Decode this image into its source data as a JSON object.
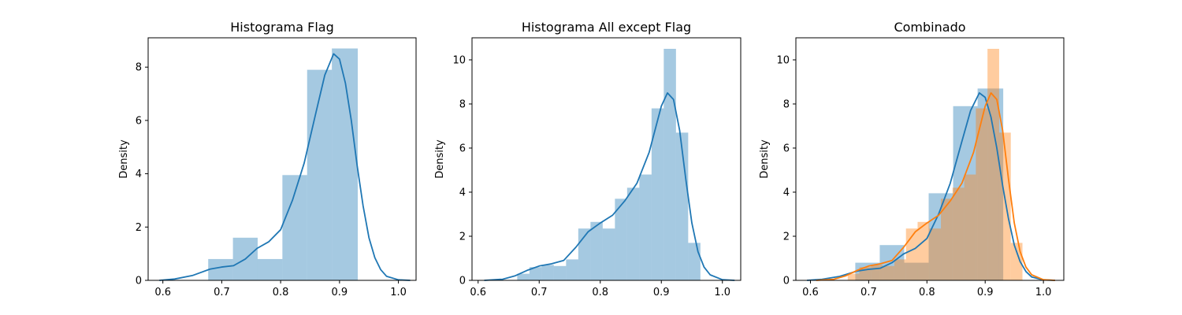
{
  "colors": {
    "blue_hist": "#1f77b4",
    "blue_line": "#1f77b4",
    "orange_hist": "#ff7f0e",
    "orange_line": "#ff7f0e"
  },
  "chart_data": [
    {
      "type": "bar",
      "title": "Histograma Flag",
      "xlabel": "",
      "ylabel": "Density",
      "xlim": [
        0.575,
        1.03
      ],
      "ylim": [
        0,
        9.1
      ],
      "xticks": [
        0.6,
        0.7,
        0.8,
        0.9,
        1.0
      ],
      "xtick_labels": [
        "0.6",
        "0.7",
        "0.8",
        "0.9",
        "1.0"
      ],
      "yticks": [
        0,
        2,
        4,
        6,
        8
      ],
      "ytick_labels": [
        "0",
        "2",
        "4",
        "6",
        "8"
      ],
      "grid": false,
      "series": [
        {
          "hist_color": "blue_hist",
          "line_color": "blue_line",
          "bins": [
            {
              "x0": 0.677,
              "x1": 0.719,
              "value": 0.8
            },
            {
              "x0": 0.719,
              "x1": 0.761,
              "value": 1.6
            },
            {
              "x0": 0.761,
              "x1": 0.803,
              "value": 0.8
            },
            {
              "x0": 0.803,
              "x1": 0.845,
              "value": 3.95
            },
            {
              "x0": 0.845,
              "x1": 0.887,
              "value": 7.9
            },
            {
              "x0": 0.887,
              "x1": 0.931,
              "value": 8.7
            }
          ],
          "kde": [
            [
              0.594,
              0.0
            ],
            [
              0.62,
              0.05
            ],
            [
              0.65,
              0.18
            ],
            [
              0.68,
              0.42
            ],
            [
              0.7,
              0.5
            ],
            [
              0.72,
              0.55
            ],
            [
              0.74,
              0.8
            ],
            [
              0.76,
              1.2
            ],
            [
              0.78,
              1.45
            ],
            [
              0.8,
              1.9
            ],
            [
              0.82,
              3.0
            ],
            [
              0.84,
              4.4
            ],
            [
              0.86,
              6.3
            ],
            [
              0.875,
              7.7
            ],
            [
              0.89,
              8.5
            ],
            [
              0.9,
              8.3
            ],
            [
              0.91,
              7.4
            ],
            [
              0.92,
              6.0
            ],
            [
              0.93,
              4.3
            ],
            [
              0.94,
              2.8
            ],
            [
              0.95,
              1.6
            ],
            [
              0.96,
              0.85
            ],
            [
              0.97,
              0.4
            ],
            [
              0.98,
              0.15
            ],
            [
              1.0,
              0.02
            ],
            [
              1.02,
              0.0
            ]
          ]
        }
      ]
    },
    {
      "type": "bar",
      "title": "Histograma All except Flag",
      "xlabel": "",
      "ylabel": "Density",
      "xlim": [
        0.59,
        1.03
      ],
      "ylim": [
        0,
        11.0
      ],
      "xticks": [
        0.6,
        0.7,
        0.8,
        0.9,
        1.0
      ],
      "xtick_labels": [
        "0.6",
        "0.7",
        "0.8",
        "0.9",
        "1.0"
      ],
      "yticks": [
        0,
        2,
        4,
        6,
        8,
        10
      ],
      "ytick_labels": [
        "0",
        "2",
        "4",
        "6",
        "8",
        "10"
      ],
      "grid": false,
      "series": [
        {
          "hist_color": "blue_hist",
          "line_color": "blue_line",
          "bins": [
            {
              "x0": 0.664,
              "x1": 0.684,
              "value": 0.3
            },
            {
              "x0": 0.684,
              "x1": 0.704,
              "value": 0.6
            },
            {
              "x0": 0.704,
              "x1": 0.724,
              "value": 0.7
            },
            {
              "x0": 0.724,
              "x1": 0.744,
              "value": 0.65
            },
            {
              "x0": 0.744,
              "x1": 0.764,
              "value": 0.95
            },
            {
              "x0": 0.764,
              "x1": 0.784,
              "value": 2.35
            },
            {
              "x0": 0.784,
              "x1": 0.804,
              "value": 2.65
            },
            {
              "x0": 0.804,
              "x1": 0.824,
              "value": 2.35
            },
            {
              "x0": 0.824,
              "x1": 0.844,
              "value": 3.7
            },
            {
              "x0": 0.844,
              "x1": 0.864,
              "value": 4.2
            },
            {
              "x0": 0.864,
              "x1": 0.884,
              "value": 4.8
            },
            {
              "x0": 0.884,
              "x1": 0.904,
              "value": 7.8
            },
            {
              "x0": 0.904,
              "x1": 0.924,
              "value": 10.5
            },
            {
              "x0": 0.924,
              "x1": 0.944,
              "value": 6.7
            },
            {
              "x0": 0.944,
              "x1": 0.964,
              "value": 1.7
            }
          ],
          "kde": [
            [
              0.61,
              0.0
            ],
            [
              0.64,
              0.05
            ],
            [
              0.66,
              0.2
            ],
            [
              0.68,
              0.45
            ],
            [
              0.7,
              0.65
            ],
            [
              0.72,
              0.75
            ],
            [
              0.74,
              0.9
            ],
            [
              0.76,
              1.5
            ],
            [
              0.78,
              2.2
            ],
            [
              0.8,
              2.6
            ],
            [
              0.82,
              2.95
            ],
            [
              0.84,
              3.6
            ],
            [
              0.86,
              4.4
            ],
            [
              0.88,
              5.8
            ],
            [
              0.9,
              7.9
            ],
            [
              0.91,
              8.5
            ],
            [
              0.92,
              8.2
            ],
            [
              0.93,
              6.8
            ],
            [
              0.94,
              4.6
            ],
            [
              0.95,
              2.6
            ],
            [
              0.96,
              1.3
            ],
            [
              0.97,
              0.6
            ],
            [
              0.98,
              0.25
            ],
            [
              1.0,
              0.03
            ],
            [
              1.02,
              0.0
            ]
          ]
        }
      ]
    },
    {
      "type": "bar",
      "title": "Combinado",
      "xlabel": "",
      "ylabel": "Density",
      "xlim": [
        0.575,
        1.035
      ],
      "ylim": [
        0,
        11.0
      ],
      "xticks": [
        0.6,
        0.7,
        0.8,
        0.9,
        1.0
      ],
      "xtick_labels": [
        "0.6",
        "0.7",
        "0.8",
        "0.9",
        "1.0"
      ],
      "yticks": [
        0,
        2,
        4,
        6,
        8,
        10
      ],
      "ytick_labels": [
        "0",
        "2",
        "4",
        "6",
        "8",
        "10"
      ],
      "grid": false,
      "series": [
        {
          "hist_color": "blue_hist",
          "line_color": "blue_line",
          "bins": [
            {
              "x0": 0.677,
              "x1": 0.719,
              "value": 0.8
            },
            {
              "x0": 0.719,
              "x1": 0.761,
              "value": 1.6
            },
            {
              "x0": 0.761,
              "x1": 0.803,
              "value": 0.8
            },
            {
              "x0": 0.803,
              "x1": 0.845,
              "value": 3.95
            },
            {
              "x0": 0.845,
              "x1": 0.887,
              "value": 7.9
            },
            {
              "x0": 0.887,
              "x1": 0.931,
              "value": 8.7
            }
          ],
          "kde": [
            [
              0.594,
              0.0
            ],
            [
              0.62,
              0.05
            ],
            [
              0.65,
              0.18
            ],
            [
              0.68,
              0.42
            ],
            [
              0.7,
              0.5
            ],
            [
              0.72,
              0.55
            ],
            [
              0.74,
              0.8
            ],
            [
              0.76,
              1.2
            ],
            [
              0.78,
              1.45
            ],
            [
              0.8,
              1.9
            ],
            [
              0.82,
              3.0
            ],
            [
              0.84,
              4.4
            ],
            [
              0.86,
              6.3
            ],
            [
              0.875,
              7.7
            ],
            [
              0.89,
              8.5
            ],
            [
              0.9,
              8.3
            ],
            [
              0.91,
              7.4
            ],
            [
              0.92,
              6.0
            ],
            [
              0.93,
              4.3
            ],
            [
              0.94,
              2.8
            ],
            [
              0.95,
              1.6
            ],
            [
              0.96,
              0.85
            ],
            [
              0.97,
              0.4
            ],
            [
              0.98,
              0.15
            ],
            [
              1.0,
              0.02
            ],
            [
              1.02,
              0.0
            ]
          ]
        },
        {
          "hist_color": "orange_hist",
          "line_color": "orange_line",
          "bins": [
            {
              "x0": 0.664,
              "x1": 0.684,
              "value": 0.3
            },
            {
              "x0": 0.684,
              "x1": 0.704,
              "value": 0.6
            },
            {
              "x0": 0.704,
              "x1": 0.724,
              "value": 0.7
            },
            {
              "x0": 0.724,
              "x1": 0.744,
              "value": 0.65
            },
            {
              "x0": 0.744,
              "x1": 0.764,
              "value": 0.95
            },
            {
              "x0": 0.764,
              "x1": 0.784,
              "value": 2.35
            },
            {
              "x0": 0.784,
              "x1": 0.804,
              "value": 2.65
            },
            {
              "x0": 0.804,
              "x1": 0.824,
              "value": 2.35
            },
            {
              "x0": 0.824,
              "x1": 0.844,
              "value": 3.7
            },
            {
              "x0": 0.844,
              "x1": 0.864,
              "value": 4.2
            },
            {
              "x0": 0.864,
              "x1": 0.884,
              "value": 4.8
            },
            {
              "x0": 0.884,
              "x1": 0.904,
              "value": 7.8
            },
            {
              "x0": 0.904,
              "x1": 0.924,
              "value": 10.5
            },
            {
              "x0": 0.924,
              "x1": 0.944,
              "value": 6.7
            },
            {
              "x0": 0.944,
              "x1": 0.964,
              "value": 1.7
            }
          ],
          "kde": [
            [
              0.61,
              0.0
            ],
            [
              0.64,
              0.05
            ],
            [
              0.66,
              0.2
            ],
            [
              0.68,
              0.45
            ],
            [
              0.7,
              0.65
            ],
            [
              0.72,
              0.75
            ],
            [
              0.74,
              0.9
            ],
            [
              0.76,
              1.5
            ],
            [
              0.78,
              2.2
            ],
            [
              0.8,
              2.6
            ],
            [
              0.82,
              2.95
            ],
            [
              0.84,
              3.6
            ],
            [
              0.86,
              4.4
            ],
            [
              0.88,
              5.8
            ],
            [
              0.9,
              7.9
            ],
            [
              0.91,
              8.5
            ],
            [
              0.92,
              8.2
            ],
            [
              0.93,
              6.8
            ],
            [
              0.94,
              4.6
            ],
            [
              0.95,
              2.6
            ],
            [
              0.96,
              1.3
            ],
            [
              0.97,
              0.6
            ],
            [
              0.98,
              0.25
            ],
            [
              1.0,
              0.03
            ],
            [
              1.02,
              0.0
            ]
          ]
        }
      ]
    }
  ]
}
